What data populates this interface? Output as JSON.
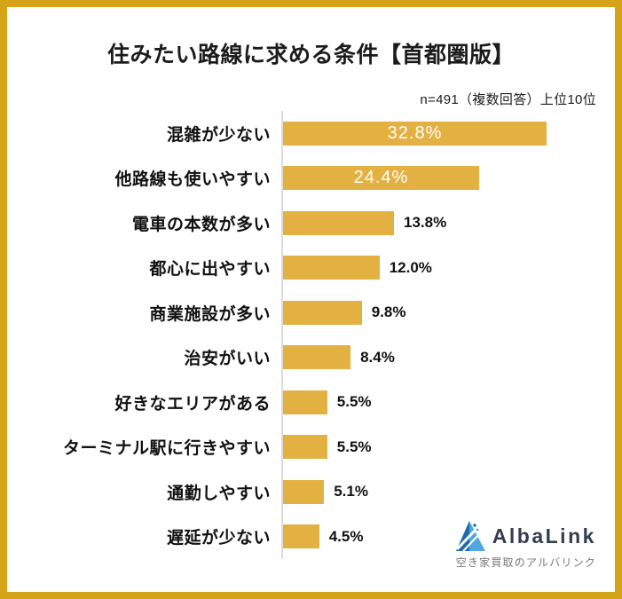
{
  "frame": {
    "border_color": "#D4A318"
  },
  "header": {
    "title": "住みたい路線に求める条件【首都圏版】",
    "note": "n=491（複数回答）上位10位"
  },
  "chart_data": {
    "type": "bar",
    "orientation": "horizontal",
    "title": "住みたい路線に求める条件【首都圏版】",
    "note": "n=491（複数回答）上位10位",
    "categories": [
      "混雑が少ない",
      "他路線も使いやすい",
      "電車の本数が多い",
      "都心に出やすい",
      "商業施設が多い",
      "治安がいい",
      "好きなエリアがある",
      "ターミナル駅に行きやすい",
      "通勤しやすい",
      "遅延が少ない"
    ],
    "values": [
      32.8,
      24.4,
      13.8,
      12.0,
      9.8,
      8.4,
      5.5,
      5.5,
      5.1,
      4.5
    ],
    "value_labels": [
      "32.8%",
      "24.4%",
      "13.8%",
      "12.0%",
      "9.8%",
      "8.4%",
      "5.5%",
      "5.5%",
      "5.1%",
      "4.5%"
    ],
    "labels_inside": [
      true,
      true,
      false,
      false,
      false,
      false,
      false,
      false,
      false,
      false
    ],
    "bar_color": "#E2B142",
    "axis_line_color": "#DCDCDC",
    "xlim": [
      0,
      36
    ],
    "grid": false,
    "legend": false
  },
  "footer": {
    "logo_text": "AlbaLink",
    "logo_tagline": "空き家買取のアルバリンク",
    "logo_navy": "#333F4D",
    "logo_blue_light": "#4FA8DE",
    "logo_blue_dark": "#1E6CB0"
  }
}
